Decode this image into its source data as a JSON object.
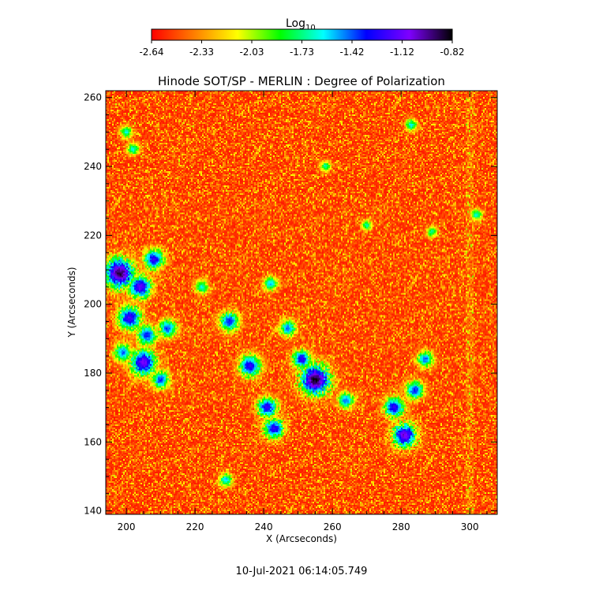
{
  "chart_data": {
    "type": "heatmap",
    "title": "Hinode SOT/SP - MERLIN : Degree of Polarization",
    "xlabel": "X (Arcseconds)",
    "ylabel": "Y (Arcseconds)",
    "xlim": [
      194,
      308
    ],
    "ylim": [
      139,
      262
    ],
    "x_ticks": [
      200,
      220,
      240,
      260,
      280,
      300
    ],
    "y_ticks": [
      140,
      160,
      180,
      200,
      220,
      240,
      260
    ],
    "colorbar": {
      "label": "Log",
      "label_subscript": "10",
      "ticks": [
        "-2.64",
        "-2.33",
        "-2.03",
        "-1.73",
        "-1.42",
        "-1.12",
        "-0.82"
      ],
      "vmin": -2.64,
      "vmax": -0.82,
      "colormap": [
        "#ff0000",
        "#ff7f00",
        "#ffff00",
        "#00ff00",
        "#00ffff",
        "#0000ff",
        "#7f00ff",
        "#000000"
      ]
    },
    "features": [
      {
        "x": 198,
        "y": 209,
        "r": 3.2,
        "peak": -0.95
      },
      {
        "x": 204,
        "y": 205,
        "r": 2.5,
        "peak": -1.2
      },
      {
        "x": 208,
        "y": 213,
        "r": 2.2,
        "peak": -1.3
      },
      {
        "x": 201,
        "y": 196,
        "r": 2.6,
        "peak": -1.25
      },
      {
        "x": 206,
        "y": 191,
        "r": 2.2,
        "peak": -1.4
      },
      {
        "x": 212,
        "y": 193,
        "r": 2.0,
        "peak": -1.45
      },
      {
        "x": 205,
        "y": 183,
        "r": 2.8,
        "peak": -1.15
      },
      {
        "x": 210,
        "y": 178,
        "r": 2.0,
        "peak": -1.45
      },
      {
        "x": 199,
        "y": 186,
        "r": 2.0,
        "peak": -1.5
      },
      {
        "x": 230,
        "y": 195,
        "r": 2.2,
        "peak": -1.4
      },
      {
        "x": 236,
        "y": 182,
        "r": 2.4,
        "peak": -1.3
      },
      {
        "x": 241,
        "y": 170,
        "r": 2.2,
        "peak": -1.3
      },
      {
        "x": 243,
        "y": 164,
        "r": 2.2,
        "peak": -1.3
      },
      {
        "x": 247,
        "y": 193,
        "r": 1.8,
        "peak": -1.5
      },
      {
        "x": 255,
        "y": 178,
        "r": 3.2,
        "peak": -0.9
      },
      {
        "x": 251,
        "y": 184,
        "r": 2.0,
        "peak": -1.3
      },
      {
        "x": 264,
        "y": 172,
        "r": 1.8,
        "peak": -1.5
      },
      {
        "x": 278,
        "y": 170,
        "r": 2.2,
        "peak": -1.3
      },
      {
        "x": 281,
        "y": 162,
        "r": 2.6,
        "peak": -1.1
      },
      {
        "x": 284,
        "y": 175,
        "r": 2.0,
        "peak": -1.4
      },
      {
        "x": 287,
        "y": 184,
        "r": 1.8,
        "peak": -1.5
      },
      {
        "x": 242,
        "y": 206,
        "r": 1.6,
        "peak": -1.6
      },
      {
        "x": 222,
        "y": 205,
        "r": 1.6,
        "peak": -1.7
      },
      {
        "x": 202,
        "y": 245,
        "r": 1.4,
        "peak": -1.7
      },
      {
        "x": 200,
        "y": 250,
        "r": 1.4,
        "peak": -1.7
      },
      {
        "x": 283,
        "y": 252,
        "r": 1.4,
        "peak": -1.7
      },
      {
        "x": 258,
        "y": 240,
        "r": 1.2,
        "peak": -1.75
      },
      {
        "x": 229,
        "y": 149,
        "r": 1.5,
        "peak": -1.6
      },
      {
        "x": 302,
        "y": 226,
        "r": 1.3,
        "peak": -1.7
      },
      {
        "x": 289,
        "y": 221,
        "r": 1.2,
        "peak": -1.75
      },
      {
        "x": 270,
        "y": 223,
        "r": 1.2,
        "peak": -1.75
      }
    ]
  },
  "footer": {
    "timestamp": "10-Jul-2021 06:14:05.749"
  }
}
